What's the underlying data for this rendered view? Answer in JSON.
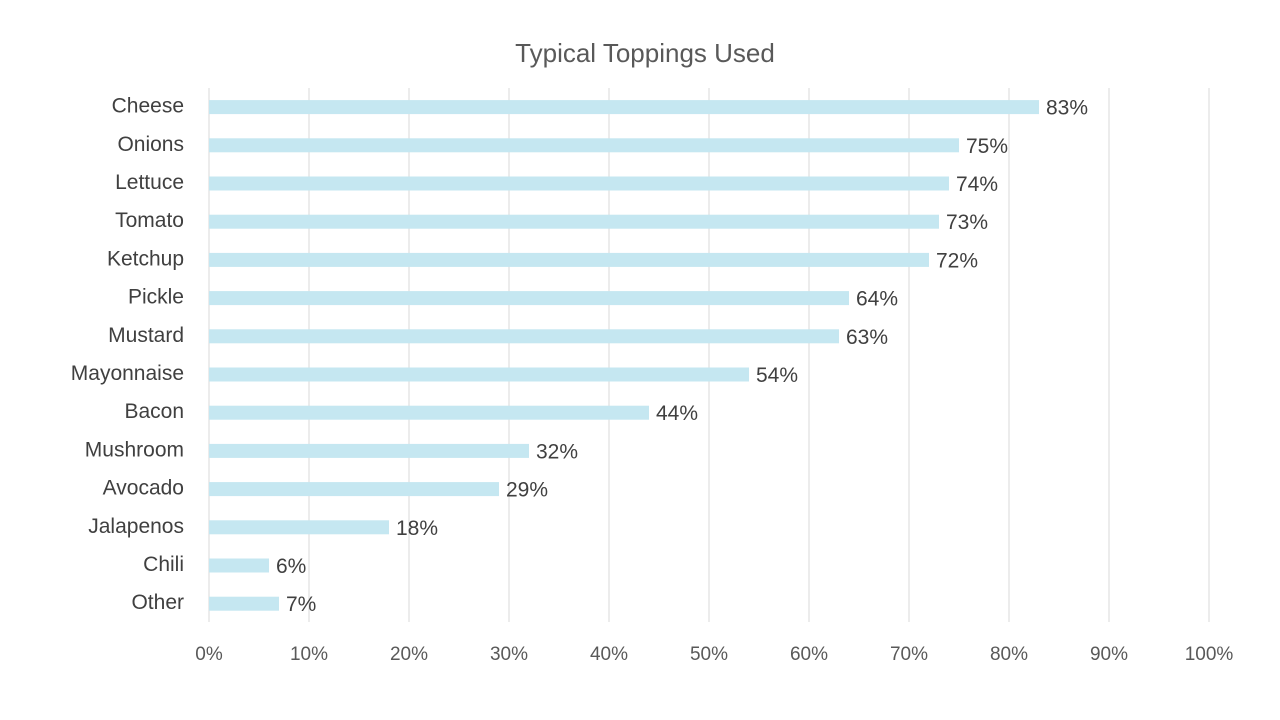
{
  "chart_data": {
    "type": "bar",
    "orientation": "horizontal",
    "title": "Typical Toppings Used",
    "xlabel": "",
    "ylabel": "",
    "categories": [
      "Cheese",
      "Onions",
      "Lettuce",
      "Tomato",
      "Ketchup",
      "Pickle",
      "Mustard",
      "Mayonnaise",
      "Bacon",
      "Mushroom",
      "Avocado",
      "Jalapenos",
      "Chili",
      "Other"
    ],
    "values": [
      83,
      75,
      74,
      73,
      72,
      64,
      63,
      54,
      44,
      32,
      29,
      18,
      6,
      7
    ],
    "value_labels": [
      "83%",
      "75%",
      "74%",
      "73%",
      "72%",
      "64%",
      "63%",
      "54%",
      "44%",
      "32%",
      "29%",
      "18%",
      "6%",
      "7%"
    ],
    "xlim": [
      0,
      100
    ],
    "x_ticks": [
      "0%",
      "10%",
      "20%",
      "30%",
      "40%",
      "50%",
      "60%",
      "70%",
      "80%",
      "90%",
      "100%"
    ],
    "grid": "vertical",
    "legend": "none",
    "colors": {
      "bar": "#c5e7f1",
      "grid": "#d9d9d9",
      "text": "#404040"
    }
  }
}
